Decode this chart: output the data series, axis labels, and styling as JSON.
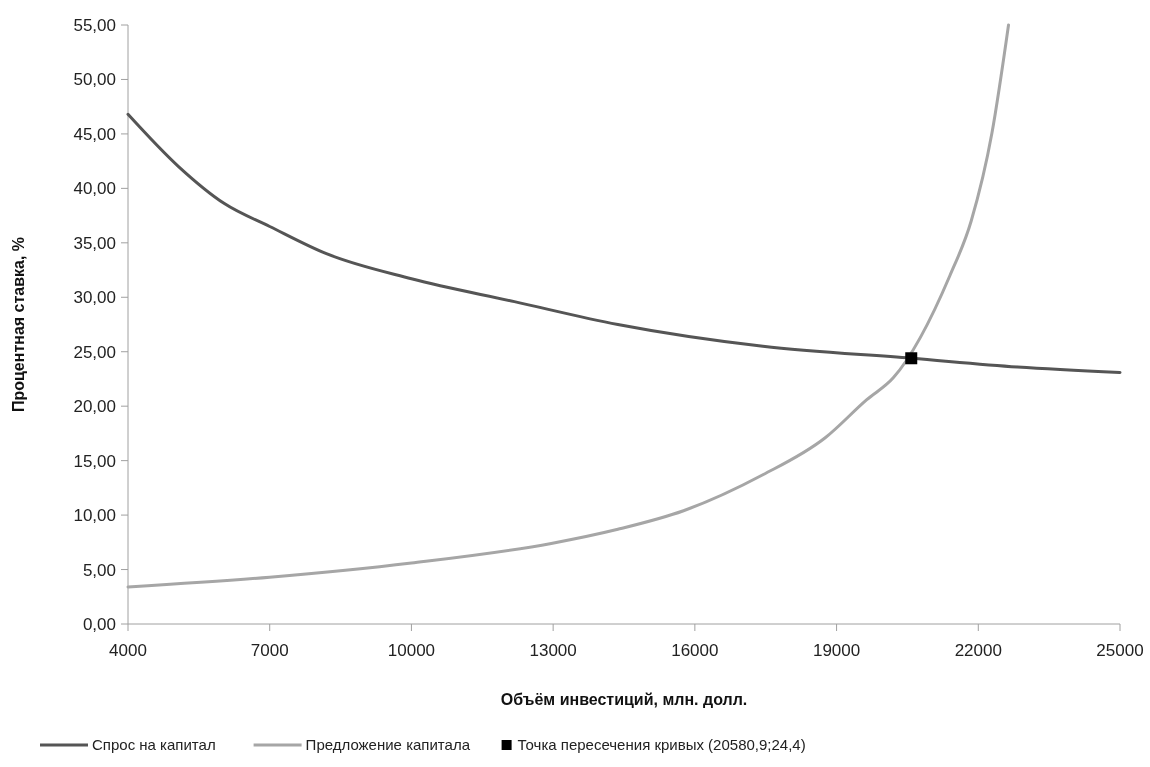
{
  "chart_data": {
    "type": "line",
    "xlabel": "Объём инвестиций, млн. долл.",
    "ylabel": "Процентная ставка, %",
    "xlim": [
      4000,
      25000
    ],
    "xticks": [
      4000,
      7000,
      10000,
      13000,
      16000,
      19000,
      22000,
      25000
    ],
    "ylim": [
      0,
      55
    ],
    "yticks": [
      {
        "value": 0,
        "label": "0,00"
      },
      {
        "value": 5,
        "label": "5,00"
      },
      {
        "value": 10,
        "label": "10,00"
      },
      {
        "value": 15,
        "label": "15,00"
      },
      {
        "value": 20,
        "label": "20,00"
      },
      {
        "value": 25,
        "label": "25,00"
      },
      {
        "value": 30,
        "label": "30,00"
      },
      {
        "value": 35,
        "label": "35,00"
      },
      {
        "value": 40,
        "label": "40,00"
      },
      {
        "value": 45,
        "label": "45,00"
      },
      {
        "value": 50,
        "label": "50,00"
      },
      {
        "value": 55,
        "label": "55,00"
      }
    ],
    "grid": false,
    "legend": "bottom",
    "marker": "none",
    "series": [
      {
        "name": "Спрос на капитал",
        "color": "#555555",
        "x": [
          4000,
          5070,
          6040,
          7000,
          8200,
          10000,
          12180,
          14370,
          17440,
          20590,
          22830,
          25000
        ],
        "values": [
          46.8,
          42.0,
          38.6,
          36.5,
          34.0,
          31.7,
          29.6,
          27.5,
          25.5,
          24.4,
          23.6,
          23.1
        ]
      },
      {
        "name": "Предложение капитала",
        "color": "#a6a6a6",
        "x": [
          4000,
          7000,
          10000,
          12960,
          14370,
          15760,
          17440,
          18760,
          19640,
          20200,
          21400,
          21850,
          22290,
          22640
        ],
        "values": [
          3.4,
          4.3,
          5.6,
          7.4,
          8.7,
          10.4,
          13.7,
          17.1,
          20.6,
          22.6,
          32.0,
          37.0,
          45.1,
          55.0
        ]
      },
      {
        "name": "Точка пересечения кривых (20580,9;24,4)",
        "type": "scatter",
        "marker": "square",
        "color": "#000000",
        "x": [
          20580.9
        ],
        "values": [
          24.4
        ]
      }
    ]
  }
}
